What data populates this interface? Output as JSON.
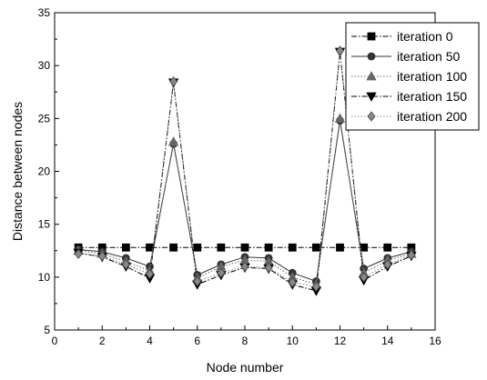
{
  "chart_data": {
    "type": "line",
    "title": "",
    "xlabel": "Node number",
    "ylabel": "Distance between nodes",
    "xlim": [
      0,
      16
    ],
    "ylim": [
      5,
      35
    ],
    "xticks": [
      0,
      2,
      4,
      6,
      8,
      10,
      12,
      14,
      16
    ],
    "yticks": [
      5,
      10,
      15,
      20,
      25,
      30,
      35
    ],
    "grid": false,
    "legend_position": "top-right",
    "x": [
      1,
      2,
      3,
      4,
      5,
      6,
      7,
      8,
      9,
      10,
      11,
      12,
      13,
      14,
      15
    ],
    "series": [
      {
        "name": "iteration 0",
        "marker": "square",
        "line_style": "dash-dot",
        "color": "#000000",
        "values": [
          12.8,
          12.8,
          12.8,
          12.8,
          12.8,
          12.8,
          12.8,
          12.8,
          12.8,
          12.8,
          12.8,
          12.8,
          12.8,
          12.8,
          12.8
        ]
      },
      {
        "name": "iteration 50",
        "marker": "circle",
        "line_style": "solid",
        "color": "#333333",
        "values": [
          12.6,
          12.4,
          11.8,
          11.0,
          22.6,
          10.2,
          11.2,
          11.9,
          11.8,
          10.4,
          9.6,
          24.8,
          10.8,
          11.8,
          12.4
        ]
      },
      {
        "name": "iteration 100",
        "marker": "triangle-up",
        "line_style": "dotted",
        "color": "#666666",
        "values": [
          12.5,
          12.2,
          11.5,
          10.6,
          22.8,
          9.9,
          11.0,
          11.6,
          11.5,
          10.0,
          9.3,
          25.0,
          10.4,
          11.6,
          12.2
        ]
      },
      {
        "name": "iteration 150",
        "marker": "triangle-down",
        "line_style": "dash-dot",
        "color": "#000000",
        "values": [
          12.3,
          11.9,
          11.0,
          9.9,
          28.4,
          9.3,
          10.2,
          10.9,
          10.8,
          9.3,
          8.7,
          31.3,
          9.7,
          11.0,
          12.0
        ]
      },
      {
        "name": "iteration 200",
        "marker": "diamond",
        "line_style": "dotted",
        "color": "#888888",
        "values": [
          12.2,
          12.0,
          11.2,
          10.3,
          28.5,
          9.6,
          10.4,
          11.0,
          10.9,
          9.5,
          9.1,
          31.4,
          10.0,
          11.2,
          12.1
        ]
      }
    ]
  }
}
